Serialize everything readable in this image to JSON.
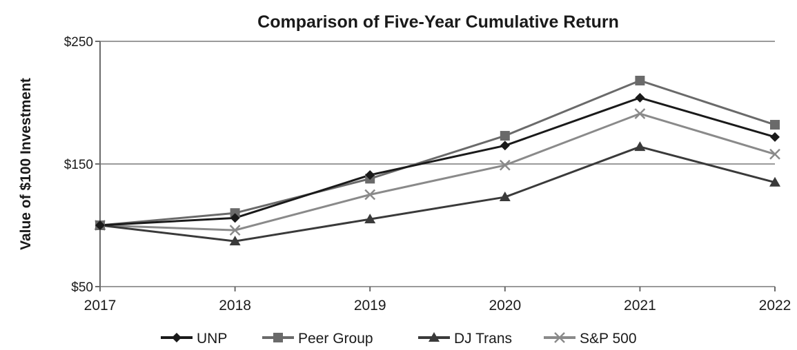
{
  "chart_data": {
    "type": "line",
    "title": "Comparison of Five-Year Cumulative Return",
    "ylabel": "Value of $100 Investment",
    "xlabel": "",
    "categories": [
      "2017",
      "2018",
      "2019",
      "2020",
      "2021",
      "2022"
    ],
    "ylim": [
      50,
      250
    ],
    "yticks": [
      {
        "value": 50,
        "label": "$50"
      },
      {
        "value": 150,
        "label": "$150"
      },
      {
        "value": 250,
        "label": "$250"
      }
    ],
    "grid": true,
    "legend": "bottom",
    "series": [
      {
        "name": "UNP",
        "marker": "diamond",
        "color": "#1a1a1a",
        "values": [
          100,
          106,
          141,
          165,
          204,
          172
        ]
      },
      {
        "name": "Peer Group",
        "marker": "square",
        "color": "#6a6a6a",
        "values": [
          100,
          110,
          138,
          173,
          218,
          182
        ]
      },
      {
        "name": "DJ Trans",
        "marker": "triangle",
        "color": "#3a3a3a",
        "values": [
          100,
          87,
          105,
          123,
          164,
          135
        ]
      },
      {
        "name": "S&P 500",
        "marker": "x",
        "color": "#8a8a8a",
        "values": [
          100,
          96,
          125,
          149,
          191,
          158
        ]
      }
    ]
  }
}
